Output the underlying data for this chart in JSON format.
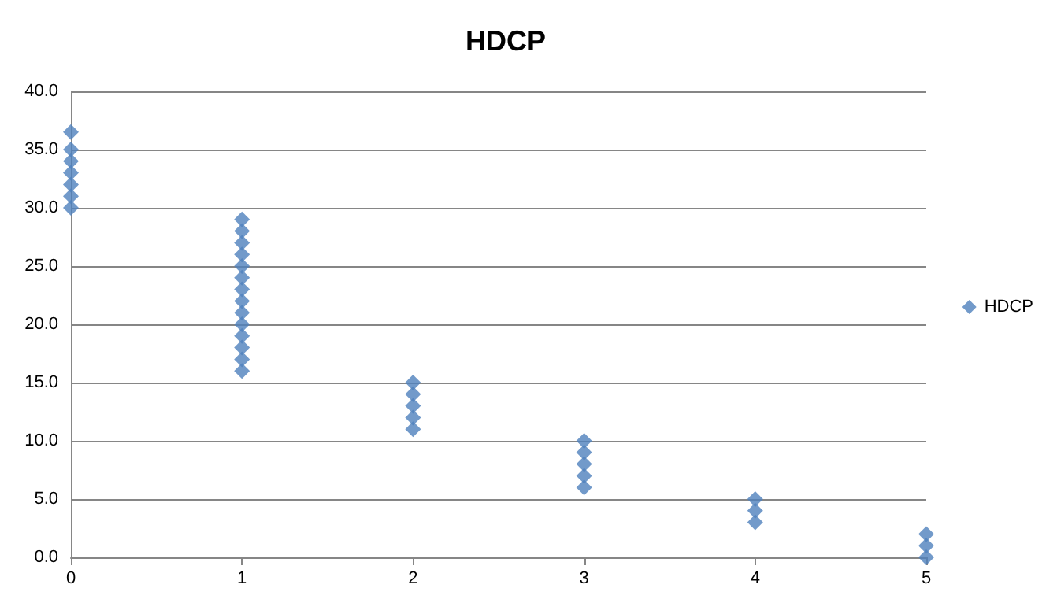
{
  "chart_data": {
    "type": "scatter",
    "title": "HDCP",
    "series": [
      {
        "name": "HDCP",
        "color": "#4f81bd",
        "x": [
          0,
          0,
          0,
          0,
          0,
          0,
          0,
          1,
          1,
          1,
          1,
          1,
          1,
          1,
          1,
          1,
          1,
          1,
          1,
          1,
          1,
          2,
          2,
          2,
          2,
          2,
          3,
          3,
          3,
          3,
          3,
          4,
          4,
          4,
          5,
          5,
          5
        ],
        "values": [
          30,
          31,
          32,
          33,
          34,
          35,
          36.5,
          16,
          17,
          18,
          19,
          20,
          21,
          22,
          23,
          24,
          25,
          26,
          27,
          28,
          29,
          11,
          12,
          13,
          14,
          15,
          6,
          7,
          8,
          9,
          10,
          3,
          4,
          5,
          0,
          1,
          2
        ]
      }
    ],
    "xlim": [
      0,
      5
    ],
    "xticks": [
      0,
      1,
      2,
      3,
      4,
      5
    ],
    "ylim": [
      0,
      40
    ],
    "yticks": [
      {
        "value": 0,
        "label": "0.0"
      },
      {
        "value": 5,
        "label": "5.0"
      },
      {
        "value": 10,
        "label": "10.0"
      },
      {
        "value": 15,
        "label": "15.0"
      },
      {
        "value": 20,
        "label": "20.0"
      },
      {
        "value": 25,
        "label": "25.0"
      },
      {
        "value": 30,
        "label": "30.0"
      },
      {
        "value": 35,
        "label": "35.0"
      },
      {
        "value": 40,
        "label": "40.0"
      }
    ],
    "grid": "y",
    "legend": "right",
    "marker": "diamond"
  }
}
